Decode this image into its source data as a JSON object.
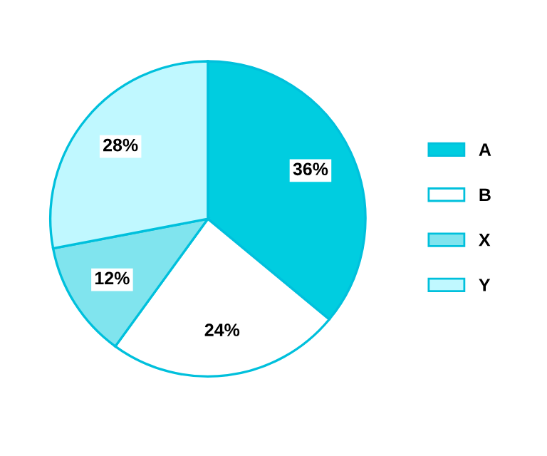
{
  "chart_data": {
    "type": "pie",
    "categories": [
      "A",
      "B",
      "X",
      "Y"
    ],
    "values": [
      36,
      24,
      12,
      28
    ],
    "colors": [
      "#00cde0",
      "#ffffff",
      "#80e4ee",
      "#c0f8ff"
    ],
    "value_labels": [
      "36%",
      "24%",
      "12%",
      "28%"
    ],
    "legend": "right"
  }
}
